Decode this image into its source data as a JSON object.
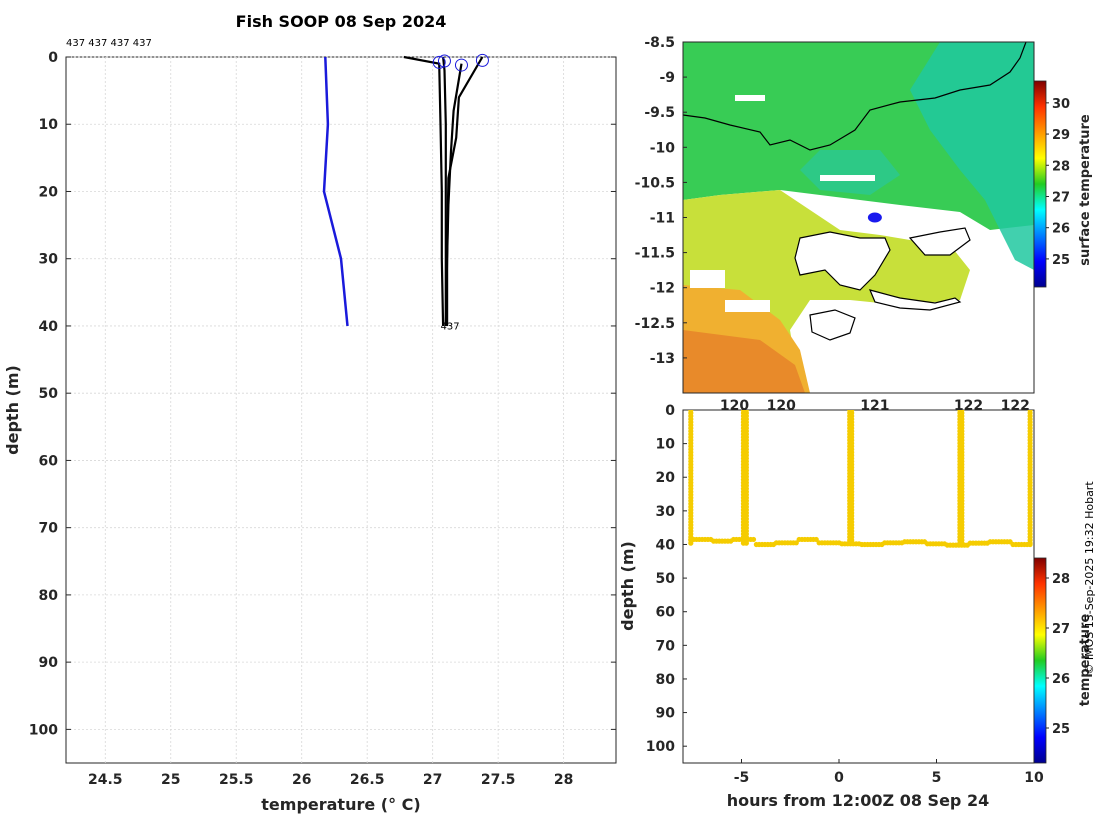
{
  "chart_data": [
    {
      "type": "line",
      "title": "Fish SOOP 08 Sep 2024",
      "top_label": "437 437 437 437",
      "xlabel": "temperature (° C)",
      "ylabel": "depth (m)",
      "xlim": [
        24.2,
        28.4
      ],
      "ylim": [
        0,
        105
      ],
      "x_ticks": [
        "24.5",
        "25",
        "25.5",
        "26",
        "26.5",
        "27",
        "27.5",
        "28"
      ],
      "y_ticks": [
        "0",
        "10",
        "20",
        "30",
        "40",
        "50",
        "60",
        "70",
        "80",
        "90",
        "100"
      ],
      "grid": true,
      "series": [
        {
          "name": "climatology",
          "color": "#1a1adb",
          "x": [
            26.18,
            26.19,
            26.2,
            26.17,
            26.3,
            26.35
          ],
          "y": [
            0,
            5,
            10,
            20,
            30,
            40
          ]
        },
        {
          "name": "profile-1",
          "color": "#000000",
          "x": [
            26.78,
            27.05,
            27.06,
            27.07,
            27.07,
            27.08
          ],
          "y": [
            0,
            1,
            10,
            20,
            30,
            40
          ]
        },
        {
          "name": "profile-2",
          "color": "#000000",
          "x": [
            27.08,
            27.09,
            27.1,
            27.1,
            27.1,
            27.1
          ],
          "y": [
            0,
            2,
            10,
            20,
            30,
            40
          ]
        },
        {
          "name": "profile-3",
          "color": "#000000",
          "x": [
            27.38,
            27.2,
            27.18,
            27.12,
            27.11,
            27.1
          ],
          "y": [
            0,
            6,
            12,
            18,
            30,
            40
          ]
        },
        {
          "name": "profile-4",
          "color": "#000000",
          "x": [
            27.22,
            27.16,
            27.14,
            27.12,
            27.11,
            27.11
          ],
          "y": [
            1,
            8,
            14,
            22,
            30,
            40
          ]
        }
      ],
      "surface_markers": [
        {
          "x": 27.05,
          "y": 0.8
        },
        {
          "x": 27.09,
          "y": 0.6
        },
        {
          "x": 27.22,
          "y": 1.2
        },
        {
          "x": 27.38,
          "y": 0.5
        }
      ],
      "end_label": "437"
    },
    {
      "type": "heatmap",
      "name": "surface-temperature-map",
      "x_ticks": [
        "120",
        "120",
        "121",
        "122",
        "122"
      ],
      "x_tick_values": [
        119.5,
        120.0,
        121.0,
        122.0,
        122.5
      ],
      "xlim": [
        118.95,
        122.7
      ],
      "y_ticks": [
        "-8.5",
        "-9",
        "-9.5",
        "-10",
        "-10.5",
        "-11",
        "-11.5",
        "-12",
        "-12.5",
        "-13"
      ],
      "y_tick_values": [
        -8.5,
        -9,
        -9.5,
        -10,
        -10.5,
        -11,
        -11.5,
        -12,
        -12.5,
        -13
      ],
      "ylim": [
        -13.5,
        -8.5
      ],
      "colorbar_label": "surface temperature",
      "colorbar_ticks": [
        "25",
        "26",
        "27",
        "28",
        "29",
        "30"
      ],
      "colorbar_range": [
        24.1,
        30.7
      ],
      "vessel_position": {
        "lon": 121.0,
        "lat": -11.0
      }
    },
    {
      "type": "scatter",
      "name": "depth-time-section",
      "xlabel": "hours from 12:00Z 08 Sep 24",
      "ylabel": "depth (m)",
      "xlim": [
        -8,
        10
      ],
      "ylim": [
        0,
        105
      ],
      "x_ticks": [
        "-5",
        "0",
        "5",
        "10"
      ],
      "x_tick_values": [
        -5,
        0,
        5,
        10
      ],
      "y_ticks": [
        "0",
        "10",
        "20",
        "30",
        "40",
        "50",
        "60",
        "70",
        "80",
        "90",
        "100"
      ],
      "point_color": "#f5cc00",
      "casts": [
        -7.6,
        -4.9,
        -4.75,
        0.55,
        0.65,
        6.2,
        6.3,
        9.8
      ],
      "bottom_depth": [
        38.5,
        39,
        38.5,
        40,
        39.5,
        38.5,
        39.5,
        39.8,
        40,
        39.5,
        39.2,
        39.8,
        40.2,
        39.6,
        39.2,
        40
      ],
      "colorbar_label": "temperature",
      "colorbar_ticks": [
        "25",
        "26",
        "27",
        "28"
      ],
      "colorbar_range": [
        24.3,
        28.4
      ]
    }
  ],
  "footer": {
    "copyright": "© IMOS 13-Sep-2025 19:32 Hobart"
  },
  "colors": {
    "profile": "#000000",
    "climatology": "#1a1adb",
    "marker": "#1a1adb",
    "section": "#f5cc00"
  }
}
